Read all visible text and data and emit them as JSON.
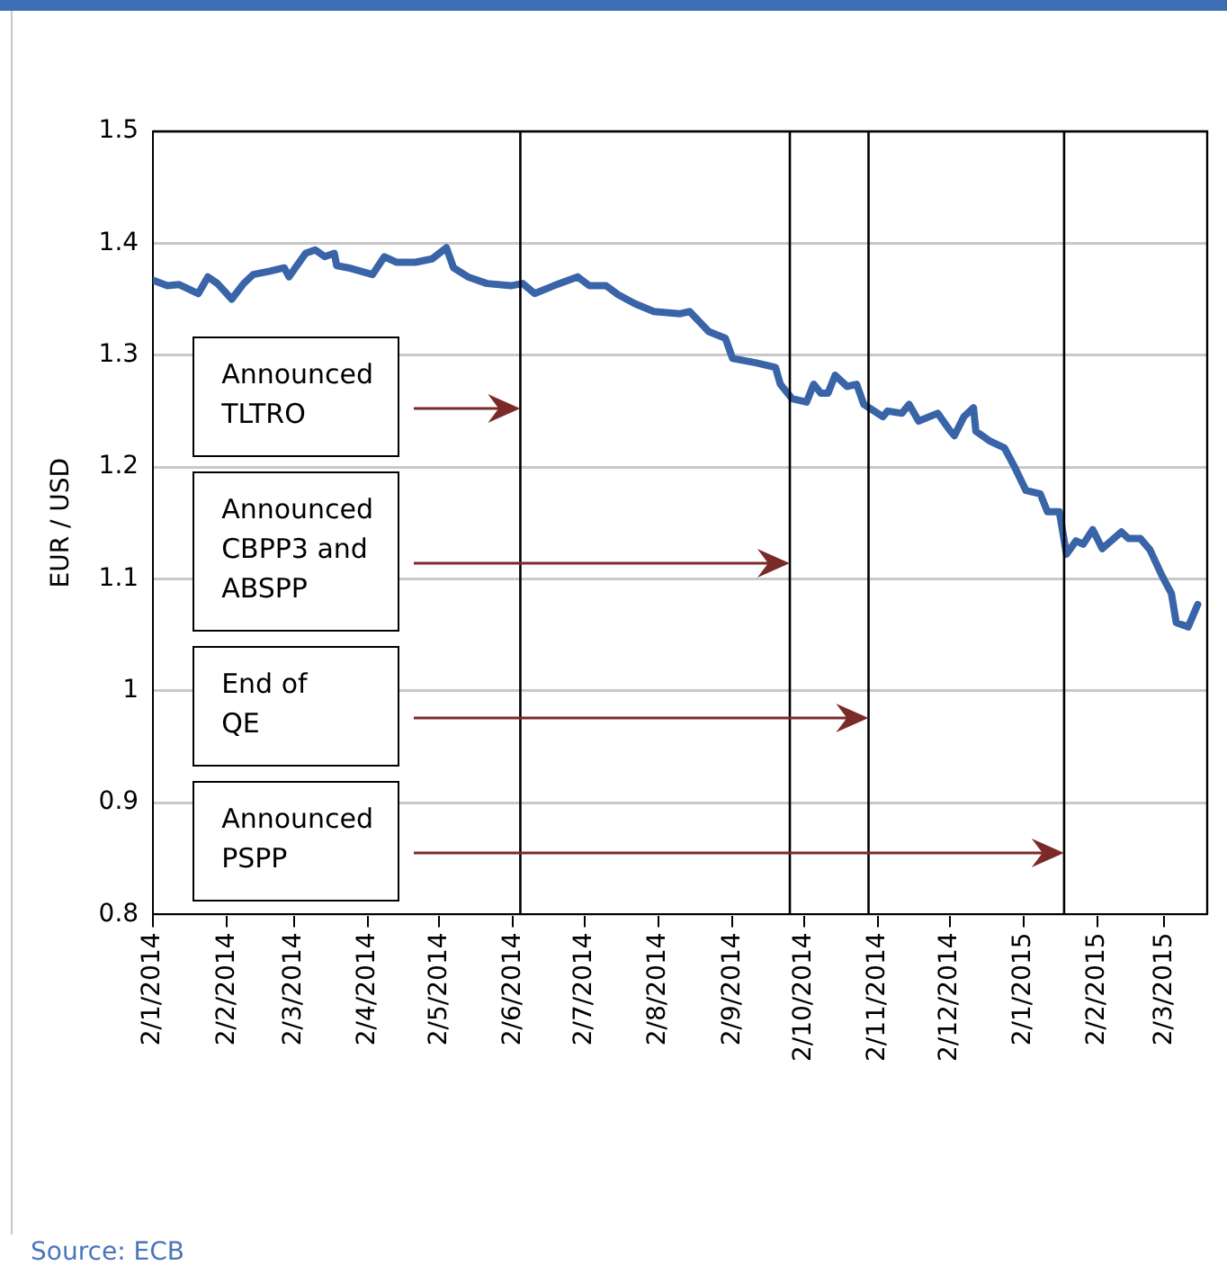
{
  "chart_data": {
    "type": "line",
    "ylabel": "EUR / USD",
    "x": [
      "2014-01-02",
      "2014-01-08",
      "2014-01-13",
      "2014-01-21",
      "2014-01-25",
      "2014-01-29",
      "2014-02-04",
      "2014-02-09",
      "2014-02-13",
      "2014-02-20",
      "2014-02-26",
      "2014-02-28",
      "2014-03-07",
      "2014-03-11",
      "2014-03-15",
      "2014-03-19",
      "2014-03-20",
      "2014-03-25",
      "2014-04-04",
      "2014-04-09",
      "2014-04-14",
      "2014-04-22",
      "2014-04-29",
      "2014-05-05",
      "2014-05-08",
      "2014-05-14",
      "2014-05-22",
      "2014-06-01",
      "2014-06-06",
      "2014-06-11",
      "2014-06-19",
      "2014-06-29",
      "2014-07-04",
      "2014-07-11",
      "2014-07-16",
      "2014-07-23",
      "2014-07-31",
      "2014-08-11",
      "2014-08-15",
      "2014-08-23",
      "2014-08-30",
      "2014-09-02",
      "2014-09-12",
      "2014-09-20",
      "2014-09-22",
      "2014-09-27",
      "2014-10-03",
      "2014-10-06",
      "2014-10-09",
      "2014-10-12",
      "2014-10-15",
      "2014-10-20",
      "2014-10-24",
      "2014-10-27",
      "2014-11-04",
      "2014-11-06",
      "2014-11-12",
      "2014-11-15",
      "2014-11-19",
      "2014-11-27",
      "2014-12-02",
      "2014-12-04",
      "2014-12-08",
      "2014-12-12",
      "2014-12-13",
      "2014-12-19",
      "2014-12-25",
      "2014-12-29",
      "2015-01-03",
      "2015-01-09",
      "2015-01-12",
      "2015-01-17",
      "2015-01-20",
      "2015-01-24",
      "2015-01-27",
      "2015-01-31",
      "2015-02-04",
      "2015-02-12",
      "2015-02-15",
      "2015-02-20",
      "2015-02-24",
      "2015-03-01",
      "2015-03-05",
      "2015-03-07",
      "2015-03-12",
      "2015-03-16"
    ],
    "series": [
      {
        "color": "#3a64a8",
        "values": [
          1.367,
          1.362,
          1.363,
          1.355,
          1.37,
          1.364,
          1.35,
          1.364,
          1.372,
          1.375,
          1.378,
          1.37,
          1.391,
          1.394,
          1.388,
          1.391,
          1.38,
          1.378,
          1.372,
          1.388,
          1.383,
          1.383,
          1.386,
          1.396,
          1.378,
          1.37,
          1.364,
          1.362,
          1.364,
          1.355,
          1.362,
          1.37,
          1.362,
          1.362,
          1.354,
          1.346,
          1.339,
          1.337,
          1.339,
          1.321,
          1.315,
          1.297,
          1.293,
          1.289,
          1.274,
          1.261,
          1.258,
          1.274,
          1.266,
          1.266,
          1.282,
          1.272,
          1.274,
          1.256,
          1.245,
          1.25,
          1.248,
          1.256,
          1.241,
          1.248,
          1.233,
          1.228,
          1.245,
          1.253,
          1.232,
          1.223,
          1.217,
          1.201,
          1.179,
          1.176,
          1.16,
          1.16,
          1.122,
          1.134,
          1.131,
          1.144,
          1.127,
          1.142,
          1.136,
          1.136,
          1.126,
          1.103,
          1.087,
          1.061,
          1.057,
          1.077
        ]
      }
    ],
    "xlim": [
      "2014-01-02",
      "2015-03-20"
    ],
    "xticks": [
      {
        "value": "2014-01-02",
        "label": "2/1/2014"
      },
      {
        "value": "2014-02-02",
        "label": "2/2/2014"
      },
      {
        "value": "2014-03-02",
        "label": "2/3/2014"
      },
      {
        "value": "2014-04-02",
        "label": "2/4/2014"
      },
      {
        "value": "2014-05-02",
        "label": "2/5/2014"
      },
      {
        "value": "2014-06-02",
        "label": "2/6/2014"
      },
      {
        "value": "2014-07-02",
        "label": "2/7/2014"
      },
      {
        "value": "2014-08-02",
        "label": "2/8/2014"
      },
      {
        "value": "2014-09-02",
        "label": "2/9/2014"
      },
      {
        "value": "2014-10-02",
        "label": "2/10/2014"
      },
      {
        "value": "2014-11-02",
        "label": "2/11/2014"
      },
      {
        "value": "2014-12-02",
        "label": "2/12/2014"
      },
      {
        "value": "2015-01-02",
        "label": "2/1/2015"
      },
      {
        "value": "2015-02-02",
        "label": "2/2/2015"
      },
      {
        "value": "2015-03-02",
        "label": "2/3/2015"
      }
    ],
    "ylim": [
      0.8,
      1.5
    ],
    "yticks": [
      0.8,
      0.9,
      1,
      1.1,
      1.2,
      1.3,
      1.4,
      1.5
    ],
    "grid": "y",
    "legend": false,
    "marker": "none",
    "line_style": "solid",
    "ref_lines": [
      {
        "axis": "x",
        "value": "2014-06-05",
        "color": "#000000"
      },
      {
        "axis": "x",
        "value": "2014-09-26",
        "color": "#000000"
      },
      {
        "axis": "x",
        "value": "2014-10-29",
        "color": "#000000"
      },
      {
        "axis": "x",
        "value": "2015-01-19",
        "color": "#000000"
      }
    ],
    "annotations": [
      "Announced\nTLTRO",
      "Announced\nCBPP3 and\nABSPP",
      "End of\nQE",
      "Announced\nPSPP",
      "Source: ECB"
    ]
  }
}
